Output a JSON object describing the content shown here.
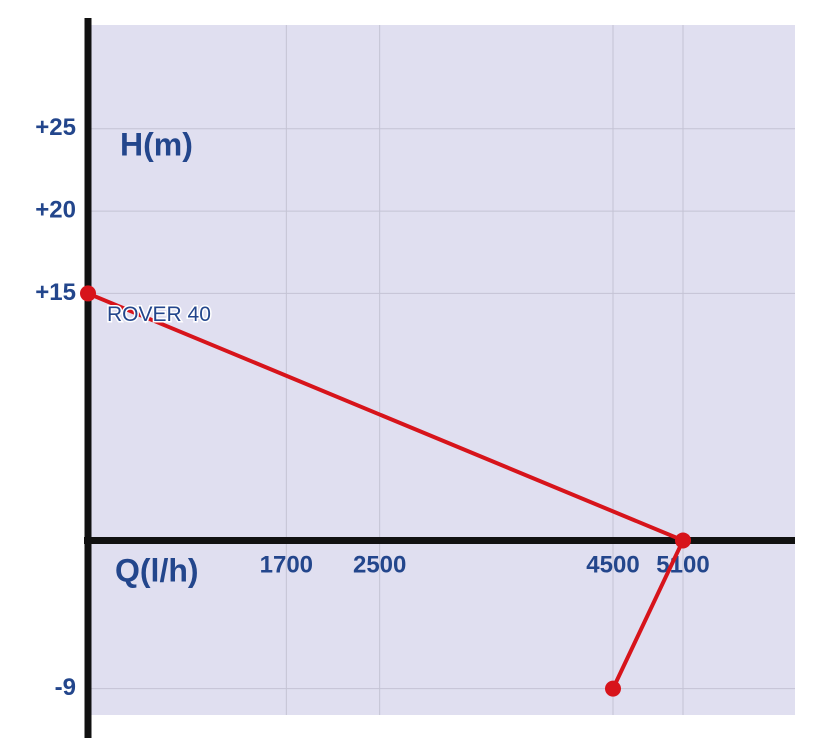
{
  "chart_data": {
    "type": "line",
    "y_label": "H(m)",
    "x_label": "Q(l/h)",
    "series": [
      {
        "name": "ROVER 40",
        "color": "#d7141b",
        "x": [
          0,
          5100,
          4500
        ],
        "values": [
          15,
          0,
          -9
        ]
      }
    ],
    "xlim": [
      0,
      6060
    ],
    "xticks": [
      1700,
      2500,
      4500,
      5100
    ],
    "ylim": [
      -10.6,
      31.3
    ],
    "yticks": [
      {
        "value": 25,
        "label": "+25"
      },
      {
        "value": 20,
        "label": "+20"
      },
      {
        "value": 15,
        "label": "+15"
      },
      -9
    ],
    "grid": true
  }
}
